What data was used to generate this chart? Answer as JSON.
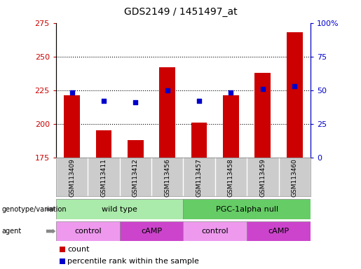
{
  "title": "GDS2149 / 1451497_at",
  "samples": [
    "GSM113409",
    "GSM113411",
    "GSM113412",
    "GSM113456",
    "GSM113457",
    "GSM113458",
    "GSM113459",
    "GSM113460"
  ],
  "counts": [
    221,
    195,
    188,
    242,
    201,
    221,
    238,
    268
  ],
  "percentile_ranks": [
    48,
    42,
    41,
    50,
    42,
    48,
    51,
    53
  ],
  "ylim_left": [
    175,
    275
  ],
  "ylim_right": [
    0,
    100
  ],
  "yticks_left": [
    175,
    200,
    225,
    250,
    275
  ],
  "yticks_right": [
    0,
    25,
    50,
    75,
    100
  ],
  "bar_color": "#cc0000",
  "dot_color": "#0000cc",
  "bar_bottom": 175,
  "genotype_groups": [
    {
      "label": "wild type",
      "start": 0,
      "end": 4,
      "color": "#aaeaaa"
    },
    {
      "label": "PGC-1alpha null",
      "start": 4,
      "end": 8,
      "color": "#66cc66"
    }
  ],
  "agent_groups": [
    {
      "label": "control",
      "start": 0,
      "end": 2,
      "color": "#ee99ee"
    },
    {
      "label": "cAMP",
      "start": 2,
      "end": 4,
      "color": "#cc44cc"
    },
    {
      "label": "control",
      "start": 4,
      "end": 6,
      "color": "#ee99ee"
    },
    {
      "label": "cAMP",
      "start": 6,
      "end": 8,
      "color": "#cc44cc"
    }
  ],
  "legend_count_color": "#cc0000",
  "legend_dot_color": "#0000cc",
  "bg_color": "#ffffff",
  "tick_label_color_left": "#cc0000",
  "tick_label_color_right": "#0000cc",
  "label_area_color": "#cccccc",
  "cell_border_color": "#aaaaaa"
}
